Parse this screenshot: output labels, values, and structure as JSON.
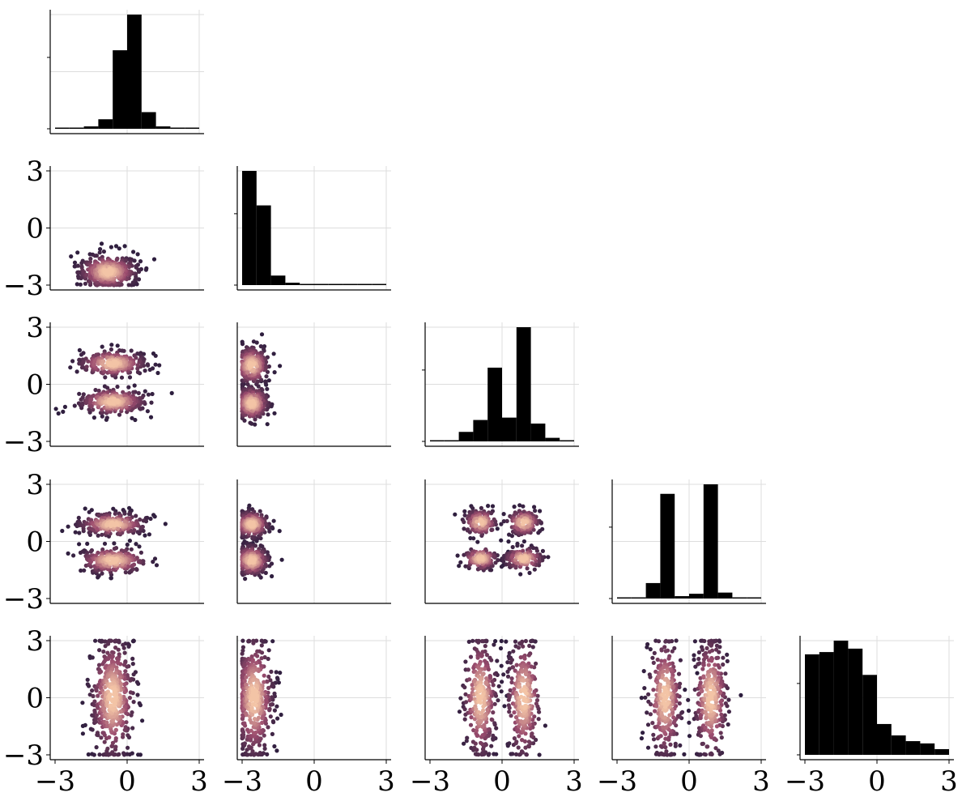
{
  "chart_data": {
    "type": "pairplot",
    "n_variables": 5,
    "variables": [
      "",
      "",
      "",
      "",
      ""
    ],
    "axis_range": [
      -3,
      3
    ],
    "tick_values": [
      -3,
      0,
      3
    ],
    "tick_labels": [
      "−3",
      "0",
      "3"
    ],
    "grid": true,
    "colors": {
      "histogram": "#000000",
      "hex_low": "#2d1e3e",
      "hex_mid": "#9b4c6e",
      "hex_high": "#f3c4a6",
      "grid": "#dddddd",
      "axis": "#000000"
    },
    "diagonal_histograms": [
      {
        "bins": [
          -3,
          -2.4,
          -1.8,
          -1.2,
          -0.6,
          0,
          0.6,
          1.2,
          1.8,
          2.4,
          3
        ],
        "values": [
          0.01,
          0.01,
          0.02,
          0.08,
          0.66,
          0.96,
          0.14,
          0.02,
          0.01,
          0.01
        ]
      },
      {
        "bins": [
          -3,
          -2.4,
          -1.8,
          -1.2,
          -0.6,
          0,
          0.6,
          1.2,
          1.8,
          2.4,
          3
        ],
        "values": [
          0.96,
          0.67,
          0.08,
          0.02,
          0.01,
          0.01,
          0.01,
          0.01,
          0.01,
          0.01
        ]
      },
      {
        "bins": [
          -3,
          -2.4,
          -1.8,
          -1.2,
          -0.6,
          0,
          0.6,
          1.2,
          1.8,
          2.4,
          3
        ],
        "values": [
          0.01,
          0.01,
          0.08,
          0.18,
          0.62,
          0.2,
          0.96,
          0.15,
          0.03,
          0.01
        ]
      },
      {
        "bins": [
          -3,
          -2.4,
          -1.8,
          -1.2,
          -0.6,
          0,
          0.6,
          1.2,
          1.8,
          2.4,
          3
        ],
        "values": [
          0.01,
          0.01,
          0.13,
          0.88,
          0.02,
          0.04,
          0.96,
          0.05,
          0.01,
          0.01
        ]
      },
      {
        "bins": [
          -3,
          -2.4,
          -1.8,
          -1.2,
          -0.6,
          0,
          0.6,
          1.2,
          1.8,
          2.4,
          3
        ],
        "values": [
          0.88,
          0.9,
          1.0,
          0.93,
          0.7,
          0.27,
          0.17,
          0.12,
          0.1,
          0.05
        ]
      }
    ],
    "hexbin_panels": [
      {
        "row": 1,
        "col": 0,
        "clusters": [
          {
            "x": -0.8,
            "y": -2.3,
            "sx": 0.6,
            "sy": 0.45,
            "n": 420
          }
        ]
      },
      {
        "row": 2,
        "col": 0,
        "clusters": [
          {
            "x": -0.6,
            "y": 1.1,
            "sx": 0.7,
            "sy": 0.35,
            "n": 260
          },
          {
            "x": -0.6,
            "y": -0.9,
            "sx": 0.7,
            "sy": 0.35,
            "n": 260
          }
        ]
      },
      {
        "row": 2,
        "col": 1,
        "clusters": [
          {
            "x": -2.6,
            "y": 1.0,
            "sx": 0.35,
            "sy": 0.5,
            "n": 260
          },
          {
            "x": -2.6,
            "y": -1.0,
            "sx": 0.35,
            "sy": 0.45,
            "n": 240
          }
        ]
      },
      {
        "row": 3,
        "col": 0,
        "clusters": [
          {
            "x": -0.6,
            "y": 0.9,
            "sx": 0.7,
            "sy": 0.3,
            "n": 260
          },
          {
            "x": -0.6,
            "y": -1.0,
            "sx": 0.7,
            "sy": 0.35,
            "n": 260
          }
        ]
      },
      {
        "row": 3,
        "col": 1,
        "clusters": [
          {
            "x": -2.6,
            "y": 0.9,
            "sx": 0.35,
            "sy": 0.35,
            "n": 250
          },
          {
            "x": -2.6,
            "y": -1.0,
            "sx": 0.35,
            "sy": 0.4,
            "n": 250
          }
        ]
      },
      {
        "row": 3,
        "col": 2,
        "clusters": [
          {
            "x": -0.9,
            "y": 1.0,
            "sx": 0.35,
            "sy": 0.35,
            "n": 140
          },
          {
            "x": 0.9,
            "y": 1.0,
            "sx": 0.35,
            "sy": 0.35,
            "n": 140
          },
          {
            "x": -0.9,
            "y": -0.9,
            "sx": 0.35,
            "sy": 0.3,
            "n": 140
          },
          {
            "x": 0.9,
            "y": -0.9,
            "sx": 0.4,
            "sy": 0.3,
            "n": 140
          }
        ]
      },
      {
        "row": 4,
        "col": 0,
        "clusters": [
          {
            "x": -0.6,
            "y": 0.0,
            "sx": 0.45,
            "sy": 1.6,
            "n": 460
          }
        ]
      },
      {
        "row": 4,
        "col": 1,
        "clusters": [
          {
            "x": -2.5,
            "y": 0.0,
            "sx": 0.4,
            "sy": 1.6,
            "n": 420
          }
        ]
      },
      {
        "row": 4,
        "col": 2,
        "clusters": [
          {
            "x": -0.9,
            "y": 0.0,
            "sx": 0.35,
            "sy": 1.6,
            "n": 300
          },
          {
            "x": 0.9,
            "y": 0.0,
            "sx": 0.35,
            "sy": 1.6,
            "n": 300
          }
        ]
      },
      {
        "row": 4,
        "col": 3,
        "clusters": [
          {
            "x": -1.0,
            "y": 0.0,
            "sx": 0.35,
            "sy": 1.6,
            "n": 300
          },
          {
            "x": 0.9,
            "y": 0.0,
            "sx": 0.35,
            "sy": 1.6,
            "n": 300
          }
        ]
      }
    ]
  }
}
